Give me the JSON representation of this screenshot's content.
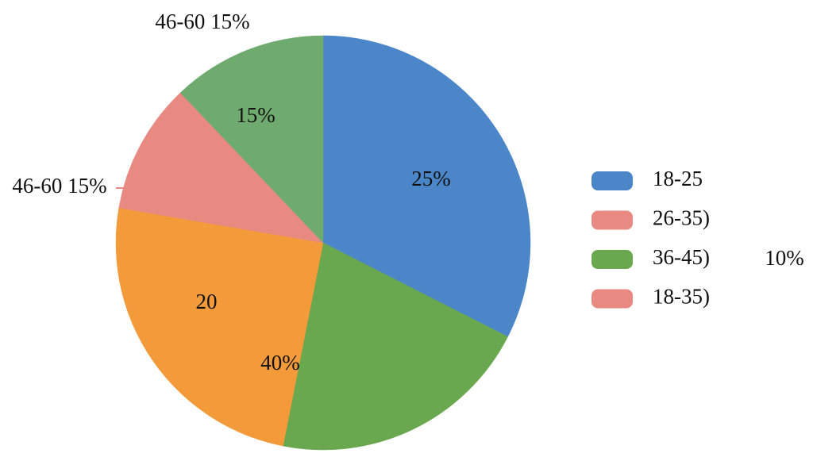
{
  "chart_data": {
    "type": "pie",
    "slices": [
      {
        "value": 32.5,
        "color": "#4a86c8"
      },
      {
        "value": 20.6,
        "color": "#6aa84f"
      },
      {
        "value": 7.2,
        "color": "#f39a3a"
      },
      {
        "value": 13.4,
        "color": "#f39a3a"
      },
      {
        "value": 4.0,
        "color": "#f39a3a"
      },
      {
        "value": 10.2,
        "color": "#e88a82"
      },
      {
        "value": 12.1,
        "color": "#6fab6f"
      }
    ],
    "legend": [
      {
        "name": "18-25",
        "color": "#4a86c8"
      },
      {
        "name": "26-35)",
        "color": "#e88a82"
      },
      {
        "name": "36-45)",
        "color": "#6aa84f"
      },
      {
        "name": "18-35)",
        "color": "#e88a82"
      }
    ],
    "annotations": [
      "25%",
      "15%",
      "20",
      "40%",
      "46-60 15%",
      "46-60 15%",
      "10%"
    ]
  }
}
